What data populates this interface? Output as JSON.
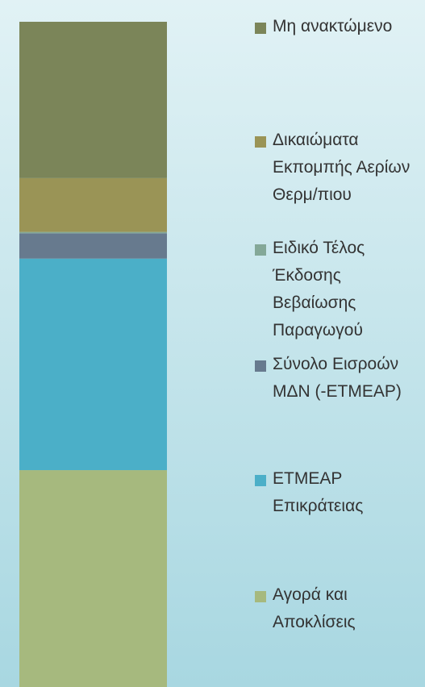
{
  "chart_data": {
    "type": "stacked_bar",
    "categories": [
      null
    ],
    "series": [
      {
        "name": "Αγορά και Αποκλίσεις",
        "color": "#a6b97e",
        "values": [
          32.6
        ]
      },
      {
        "name": "ΕΤΜΕΑΡ Επικράτειας",
        "color": "#4bafc8",
        "values": [
          31.8
        ]
      },
      {
        "name": "Σύνολο Εισροών ΜΔΝ (-ΕΤΜΕΑΡ)",
        "color": "#677a8e",
        "values": [
          3.8
        ]
      },
      {
        "name": "Ειδικό Τέλος Έκδοσης Βεβαίωσης Παραγωγού",
        "color": "#84a898",
        "values": [
          0.2
        ]
      },
      {
        "name": "Δικαιώματα Εκπομπής Αερίων Θερμ/πιου",
        "color": "#9a9456",
        "values": [
          8.1
        ]
      },
      {
        "name": "Μη ανακτώμενο",
        "color": "#7b8559",
        "values": [
          23.5
        ]
      }
    ],
    "ylim": [
      0,
      100
    ],
    "legend": "right"
  }
}
